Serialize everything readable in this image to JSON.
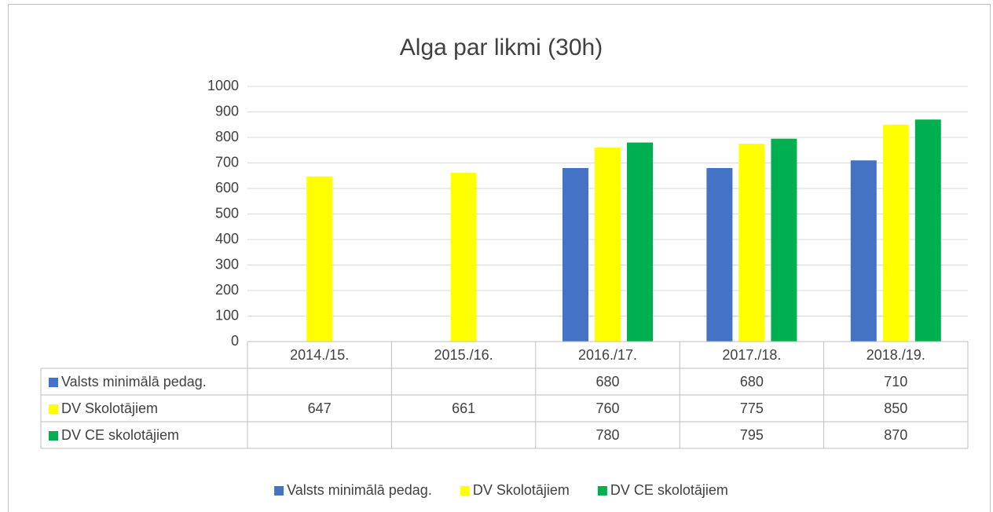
{
  "chart_data": {
    "type": "bar",
    "title": "Alga par likmi (30h)",
    "categories": [
      "2014./15.",
      "2015./16.",
      "2016./17.",
      "2017./18.",
      "2018./19."
    ],
    "series": [
      {
        "name": "Valsts minimālā pedag.",
        "color": "#4472c4",
        "values": [
          null,
          null,
          680,
          680,
          710
        ]
      },
      {
        "name": "DV Skolotājiem",
        "color": "#ffff00",
        "values": [
          647,
          661,
          760,
          775,
          850
        ]
      },
      {
        "name": "DV CE skolotājiem",
        "color": "#00b050",
        "values": [
          null,
          null,
          780,
          795,
          870
        ]
      }
    ],
    "ylim": [
      0,
      1000
    ],
    "yticks": [
      0,
      100,
      200,
      300,
      400,
      500,
      600,
      700,
      800,
      900,
      1000
    ],
    "grid": true,
    "legend": "bottom",
    "data_table": true
  }
}
